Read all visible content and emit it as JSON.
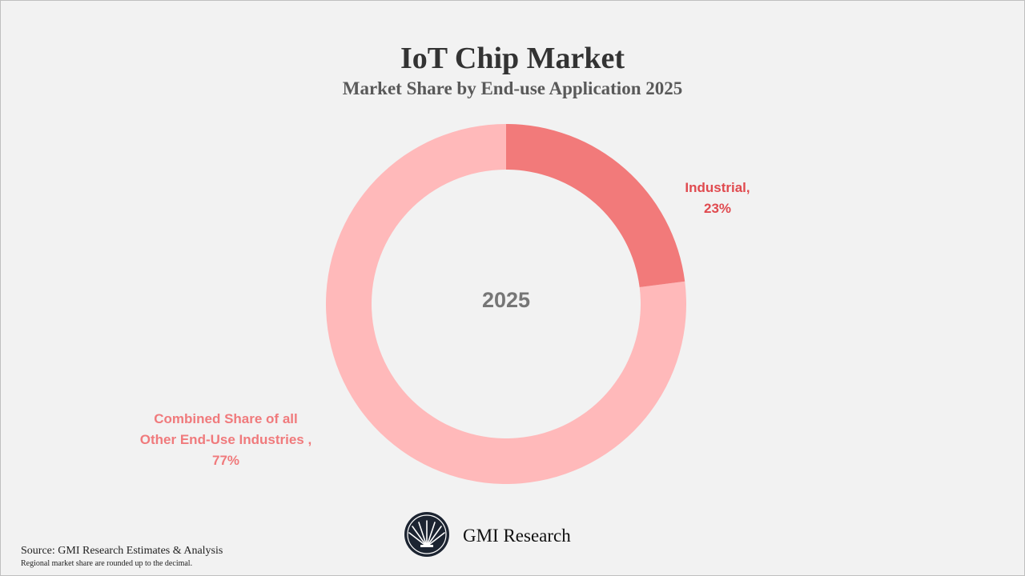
{
  "chart_data": {
    "type": "donut",
    "title": "IoT Chip Market",
    "subtitle": "Market Share by End-use Application 2025",
    "center_label": "2025",
    "categories": [
      "Industrial,",
      "Combined Share of all\nOther End-Use Industries ,"
    ],
    "values": [
      23,
      77
    ],
    "value_labels": [
      "23%",
      "77%"
    ],
    "colors": [
      "#f27a7a",
      "#ffb9ba"
    ],
    "label_colors": [
      "#e04a4f",
      "#f07a7c"
    ]
  },
  "footer": {
    "logo_text": "GMI Research",
    "source": "Source: GMI Research Estimates & Analysis",
    "note": "Regional market share are rounded up to the decimal."
  }
}
